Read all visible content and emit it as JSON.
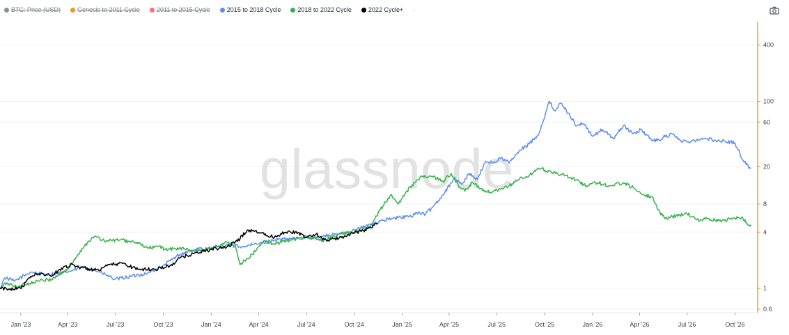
{
  "legend": {
    "items": [
      {
        "label": "BTC: Price (USD)",
        "color": "#8a8f96",
        "hidden": true
      },
      {
        "label": "Genesis to 2011 Cycle",
        "color": "#f7931a",
        "hidden": true
      },
      {
        "label": "2011 to 2015 Cycle",
        "color": "#f87171",
        "hidden": true
      },
      {
        "label": "2015 to 2018 Cycle",
        "color": "#5b8def",
        "hidden": false
      },
      {
        "label": "2018 to 2022 Cycle",
        "color": "#33b249",
        "hidden": false
      },
      {
        "label": "2022 Cycle+",
        "color": "#000000",
        "hidden": false
      }
    ],
    "extra": "-"
  },
  "toolbar": {
    "camera_icon": "camera-icon"
  },
  "watermark": "glassnode",
  "colors": {
    "right_axis_line": "#f7931a",
    "grid": "#eef0f2",
    "tick_text": "#3a3f45"
  },
  "chart_data": {
    "type": "line",
    "title": "",
    "xlabel": "",
    "ylabel": "",
    "y_scale": "log",
    "ylim": [
      0.55,
      700
    ],
    "xlim": [
      "2022-11-22",
      "2026-11-12"
    ],
    "grid": true,
    "legend_position": "top-left",
    "y_ticks": [
      0.6,
      1,
      4,
      8,
      20,
      60,
      100,
      400
    ],
    "y_tick_labels": [
      "0.6",
      "1",
      "4",
      "8",
      "20",
      "60",
      "100",
      "400"
    ],
    "x_ticks": [
      "2023-01-01",
      "2023-04-01",
      "2023-07-01",
      "2023-10-01",
      "2024-01-01",
      "2024-04-01",
      "2024-07-01",
      "2024-10-01",
      "2025-01-01",
      "2025-04-01",
      "2025-07-01",
      "2025-10-01",
      "2026-01-01",
      "2026-04-01",
      "2026-07-01",
      "2026-10-01"
    ],
    "x_tick_labels": [
      "Jan '23",
      "Apr '23",
      "Jul '23",
      "Oct '23",
      "Jan '24",
      "Apr '24",
      "Jul '24",
      "Oct '24",
      "Jan '25",
      "Apr '25",
      "Jul '25",
      "Oct '25",
      "Jan '26",
      "Apr '26",
      "Jul '26",
      "Oct '26"
    ],
    "series": [
      {
        "name": "2015 to 2018 Cycle",
        "color": "#5b8def",
        "points": [
          [
            "2022-11-22",
            1.0
          ],
          [
            "2022-12-01",
            1.3
          ],
          [
            "2022-12-20",
            1.2
          ],
          [
            "2023-01-20",
            1.5
          ],
          [
            "2023-02-20",
            1.4
          ],
          [
            "2023-04-01",
            1.5
          ],
          [
            "2023-05-01",
            1.7
          ],
          [
            "2023-06-01",
            1.5
          ],
          [
            "2023-07-01",
            1.25
          ],
          [
            "2023-08-01",
            1.35
          ],
          [
            "2023-09-01",
            1.45
          ],
          [
            "2023-10-01",
            1.75
          ],
          [
            "2023-11-01",
            2.3
          ],
          [
            "2023-12-01",
            2.6
          ],
          [
            "2024-01-01",
            2.7
          ],
          [
            "2024-02-01",
            2.9
          ],
          [
            "2024-03-01",
            2.8
          ],
          [
            "2024-04-01",
            3.0
          ],
          [
            "2024-05-01",
            3.3
          ],
          [
            "2024-06-01",
            3.4
          ],
          [
            "2024-07-01",
            3.5
          ],
          [
            "2024-08-01",
            3.6
          ],
          [
            "2024-09-01",
            3.8
          ],
          [
            "2024-10-01",
            4.2
          ],
          [
            "2024-11-01",
            4.8
          ],
          [
            "2024-11-20",
            5.3
          ],
          [
            "2024-12-15",
            5.6
          ],
          [
            "2025-01-15",
            5.9
          ],
          [
            "2025-02-01",
            6.5
          ],
          [
            "2025-02-15",
            6.2
          ],
          [
            "2025-03-01",
            7.5
          ],
          [
            "2025-03-20",
            10.0
          ],
          [
            "2025-04-10",
            15.0
          ],
          [
            "2025-04-25",
            13.0
          ],
          [
            "2025-05-10",
            17.0
          ],
          [
            "2025-05-25",
            14.5
          ],
          [
            "2025-06-10",
            23.0
          ],
          [
            "2025-06-25",
            22.0
          ],
          [
            "2025-07-10",
            25.0
          ],
          [
            "2025-07-25",
            22.0
          ],
          [
            "2025-08-15",
            30.0
          ],
          [
            "2025-09-01",
            35.0
          ],
          [
            "2025-09-20",
            45.0
          ],
          [
            "2025-10-10",
            100.0
          ],
          [
            "2025-10-20",
            80.0
          ],
          [
            "2025-11-01",
            95.0
          ],
          [
            "2025-11-15",
            75.0
          ],
          [
            "2025-12-01",
            55.0
          ],
          [
            "2025-12-15",
            58.0
          ],
          [
            "2026-01-01",
            42.0
          ],
          [
            "2026-01-20",
            50.0
          ],
          [
            "2026-02-10",
            40.0
          ],
          [
            "2026-03-01",
            55.0
          ],
          [
            "2026-03-20",
            45.0
          ],
          [
            "2026-04-05",
            50.0
          ],
          [
            "2026-04-20",
            40.0
          ],
          [
            "2026-05-05",
            38.0
          ],
          [
            "2026-05-20",
            42.0
          ],
          [
            "2026-06-05",
            45.0
          ],
          [
            "2026-06-20",
            37.0
          ],
          [
            "2026-07-10",
            38.0
          ],
          [
            "2026-08-01",
            40.0
          ],
          [
            "2026-09-01",
            38.0
          ],
          [
            "2026-10-01",
            36.0
          ],
          [
            "2026-10-15",
            24.0
          ],
          [
            "2026-10-31",
            19.0
          ]
        ]
      },
      {
        "name": "2018 to 2022 Cycle",
        "color": "#33b249",
        "points": [
          [
            "2022-11-22",
            1.0
          ],
          [
            "2022-12-05",
            1.15
          ],
          [
            "2022-12-20",
            1.05
          ],
          [
            "2023-01-10",
            1.1
          ],
          [
            "2023-02-01",
            1.2
          ],
          [
            "2023-03-01",
            1.25
          ],
          [
            "2023-04-01",
            1.6
          ],
          [
            "2023-04-20",
            2.3
          ],
          [
            "2023-05-10",
            3.2
          ],
          [
            "2023-05-25",
            3.6
          ],
          [
            "2023-06-10",
            3.2
          ],
          [
            "2023-07-10",
            3.3
          ],
          [
            "2023-08-10",
            3.1
          ],
          [
            "2023-09-01",
            2.7
          ],
          [
            "2023-09-20",
            2.8
          ],
          [
            "2023-10-10",
            2.6
          ],
          [
            "2023-11-01",
            2.7
          ],
          [
            "2023-12-01",
            2.5
          ],
          [
            "2024-01-01",
            2.7
          ],
          [
            "2024-02-01",
            3.1
          ],
          [
            "2024-02-15",
            3.0
          ],
          [
            "2024-02-25",
            1.8
          ],
          [
            "2024-03-05",
            2.0
          ],
          [
            "2024-03-20",
            2.3
          ],
          [
            "2024-04-10",
            3.2
          ],
          [
            "2024-05-01",
            3.0
          ],
          [
            "2024-06-01",
            3.3
          ],
          [
            "2024-07-01",
            3.6
          ],
          [
            "2024-08-01",
            3.2
          ],
          [
            "2024-09-01",
            3.8
          ],
          [
            "2024-10-01",
            4.0
          ],
          [
            "2024-11-01",
            4.5
          ],
          [
            "2024-11-20",
            7.0
          ],
          [
            "2024-12-10",
            10.0
          ],
          [
            "2024-12-25",
            8.0
          ],
          [
            "2025-01-10",
            11.0
          ],
          [
            "2025-01-25",
            13.5
          ],
          [
            "2025-02-10",
            16.0
          ],
          [
            "2025-03-01",
            15.5
          ],
          [
            "2025-03-20",
            14.0
          ],
          [
            "2025-04-05",
            17.0
          ],
          [
            "2025-04-20",
            12.0
          ],
          [
            "2025-05-01",
            11.0
          ],
          [
            "2025-05-15",
            13.5
          ],
          [
            "2025-06-01",
            11.5
          ],
          [
            "2025-06-20",
            10.5
          ],
          [
            "2025-07-10",
            11.5
          ],
          [
            "2025-07-25",
            12.5
          ],
          [
            "2025-08-10",
            14.5
          ],
          [
            "2025-09-01",
            16.0
          ],
          [
            "2025-09-20",
            19.0
          ],
          [
            "2025-10-10",
            18.0
          ],
          [
            "2025-11-01",
            16.5
          ],
          [
            "2025-12-01",
            14.5
          ],
          [
            "2025-12-20",
            12.5
          ],
          [
            "2026-01-10",
            13.5
          ],
          [
            "2026-02-01",
            12.5
          ],
          [
            "2026-03-01",
            13.5
          ],
          [
            "2026-03-20",
            12.0
          ],
          [
            "2026-04-10",
            10.0
          ],
          [
            "2026-04-25",
            9.5
          ],
          [
            "2026-05-10",
            6.5
          ],
          [
            "2026-05-20",
            5.6
          ],
          [
            "2026-06-10",
            6.0
          ],
          [
            "2026-07-01",
            6.3
          ],
          [
            "2026-07-20",
            5.4
          ],
          [
            "2026-08-10",
            5.6
          ],
          [
            "2026-09-01",
            5.3
          ],
          [
            "2026-10-01",
            5.6
          ],
          [
            "2026-10-15",
            5.8
          ],
          [
            "2026-10-25",
            4.8
          ],
          [
            "2026-11-01",
            4.6
          ]
        ]
      },
      {
        "name": "2022 Cycle+",
        "color": "#000000",
        "points": [
          [
            "2022-11-22",
            1.0
          ],
          [
            "2022-12-10",
            0.98
          ],
          [
            "2023-01-05",
            1.05
          ],
          [
            "2023-01-20",
            1.35
          ],
          [
            "2023-02-10",
            1.45
          ],
          [
            "2023-03-01",
            1.35
          ],
          [
            "2023-03-20",
            1.65
          ],
          [
            "2023-04-10",
            1.8
          ],
          [
            "2023-05-01",
            1.65
          ],
          [
            "2023-06-01",
            1.55
          ],
          [
            "2023-06-20",
            1.8
          ],
          [
            "2023-07-15",
            1.85
          ],
          [
            "2023-08-15",
            1.6
          ],
          [
            "2023-09-15",
            1.6
          ],
          [
            "2023-10-15",
            1.75
          ],
          [
            "2023-11-01",
            2.1
          ],
          [
            "2023-12-01",
            2.4
          ],
          [
            "2024-01-01",
            2.6
          ],
          [
            "2024-02-01",
            2.8
          ],
          [
            "2024-02-20",
            3.2
          ],
          [
            "2024-03-10",
            4.2
          ],
          [
            "2024-03-25",
            4.1
          ],
          [
            "2024-04-10",
            3.9
          ],
          [
            "2024-05-01",
            3.5
          ],
          [
            "2024-05-20",
            4.0
          ],
          [
            "2024-06-10",
            4.0
          ],
          [
            "2024-07-01",
            3.5
          ],
          [
            "2024-07-20",
            3.8
          ],
          [
            "2024-08-05",
            3.3
          ],
          [
            "2024-09-01",
            3.4
          ],
          [
            "2024-09-25",
            3.9
          ],
          [
            "2024-10-15",
            4.1
          ],
          [
            "2024-11-01",
            4.5
          ],
          [
            "2024-11-15",
            5.0
          ]
        ]
      }
    ]
  }
}
